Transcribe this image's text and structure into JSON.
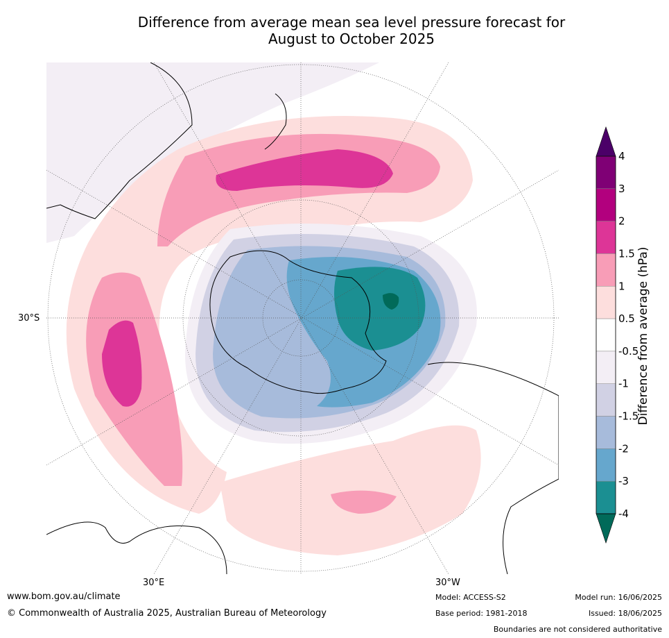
{
  "title": {
    "line1": "Difference from average mean sea level pressure forecast for",
    "line2": "August to October 2025"
  },
  "map": {
    "projection": "south polar stereographic",
    "graticule_labels": {
      "lat_30s": "30°S",
      "lon_30e": "30°E",
      "lon_30w": "30°W"
    },
    "colors": {
      "land_outline": "#000000",
      "graticule": "#555555",
      "background": "#ffffff"
    }
  },
  "colorbar": {
    "title": "Difference from average (hPa)",
    "tick_labels": [
      "4",
      "3",
      "2",
      "1.5",
      "1",
      "0.5",
      "-0.5",
      "-1",
      "-1.5",
      "-2",
      "-3",
      "-4"
    ],
    "bins": [
      {
        "color": "#4b0068"
      },
      {
        "color": "#7f0075"
      },
      {
        "color": "#b2007e"
      },
      {
        "color": "#dd3597"
      },
      {
        "color": "#f89db7"
      },
      {
        "color": "#fddedd"
      },
      {
        "color": "#ffffff"
      },
      {
        "color": "#f3eef5"
      },
      {
        "color": "#d1d1e4"
      },
      {
        "color": "#a7bbdb"
      },
      {
        "color": "#66a7cd"
      },
      {
        "color": "#1b8f92"
      },
      {
        "color": "#016a59"
      }
    ]
  },
  "footer": {
    "website": "www.bom.gov.au/climate",
    "copyright": "© Commonwealth of Australia 2025, Australian Bureau of Meteorology",
    "model": "Model: ACCESS-S2",
    "base_period": "Base period: 1981-2018",
    "model_run": "Model run: 16/06/2025",
    "issued": "Issued: 18/06/2025",
    "disclaimer": "Boundaries are not considered authoritative"
  }
}
